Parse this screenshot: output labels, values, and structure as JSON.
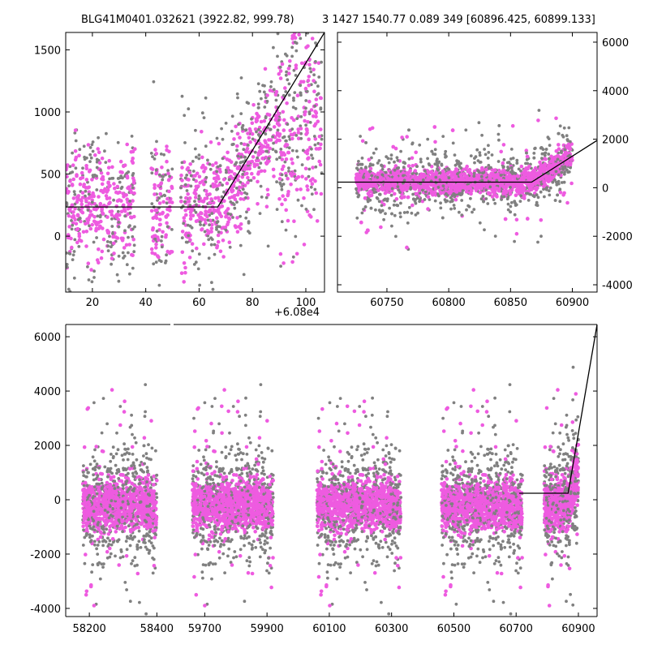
{
  "titles": {
    "left": "BLG41M0401.032621 (3922.82, 999.78)",
    "right": "3 1427 1540.77 0.089 349 [60896.425, 60899.133]"
  },
  "colors": {
    "primary": "#ee5be0",
    "secondary": "#808080",
    "model": "#000000"
  },
  "chart_data": [
    {
      "type": "scatter",
      "panel": "top-left",
      "offset_label": "+6.08e4",
      "xlim": [
        10,
        107
      ],
      "ylim": [
        -450,
        1640
      ],
      "xticks": [
        "20",
        "40",
        "60",
        "80",
        "100"
      ],
      "yticks": [
        "0",
        "500",
        "1000",
        "1500"
      ],
      "series": [
        {
          "color": "#808080",
          "note_x_ranges": [
            [
              10,
              106
            ]
          ],
          "y_spread": [
            -450,
            1600
          ]
        },
        {
          "color": "#ee5be0",
          "note_x_ranges": [
            [
              10,
              106
            ]
          ],
          "y_spread": [
            -450,
            1600
          ]
        }
      ],
      "model_line": {
        "x": [
          10,
          67,
          107
        ],
        "y": [
          235,
          235,
          1640
        ]
      }
    },
    {
      "type": "scatter",
      "panel": "top-right",
      "xlim": [
        60710,
        60920
      ],
      "ylim": [
        -4300,
        6400
      ],
      "xticks": [
        "60750",
        "60800",
        "60850",
        "60900"
      ],
      "yticks": [
        "-4000",
        "-2000",
        "0",
        "2000",
        "4000",
        "6000"
      ],
      "series": [
        {
          "color": "#808080",
          "x_range": [
            60725,
            60900
          ]
        },
        {
          "color": "#ee5be0",
          "x_range": [
            60725,
            60900
          ]
        }
      ],
      "model_line": {
        "x": [
          60710,
          60867,
          60920
        ],
        "y": [
          230,
          230,
          1950
        ]
      }
    },
    {
      "type": "scatter",
      "panel": "bottom",
      "ylim": [
        -4300,
        6450
      ],
      "yticks": [
        "-4000",
        "-2000",
        "0",
        "2000",
        "4000",
        "6000"
      ],
      "segments": [
        {
          "xlim": [
            58130,
            58440
          ],
          "xticks": [
            "58200",
            "58400"
          ],
          "season": [
            58180,
            58400
          ]
        },
        {
          "xlim": [
            59600,
            60960
          ],
          "xticks": [
            "59700",
            "59900",
            "60100",
            "60300",
            "60500",
            "60700",
            "60900"
          ],
          "seasons": [
            [
              59660,
              59920
            ],
            [
              60060,
              60330
            ],
            [
              60460,
              60720
            ],
            [
              60790,
              60900
            ]
          ]
        }
      ],
      "model_line": {
        "x": [
          60710,
          60867,
          60960
        ],
        "y": [
          240,
          240,
          6450
        ]
      }
    }
  ]
}
